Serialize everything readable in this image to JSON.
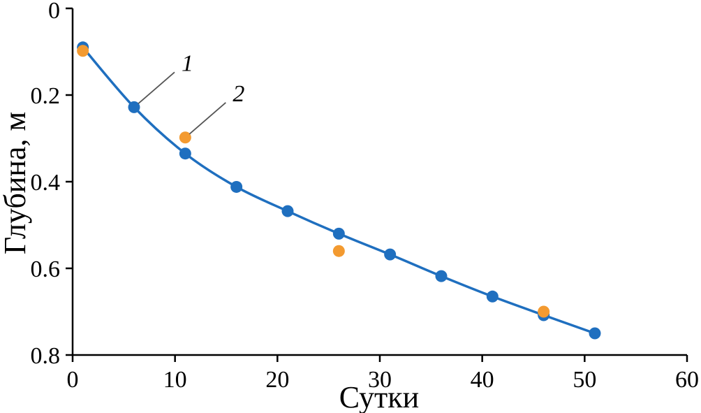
{
  "chart_data": {
    "type": "scatter",
    "xlabel": "Сутки",
    "ylabel": "Глубина, м",
    "xlim": [
      0,
      60
    ],
    "ylim": [
      0,
      0.8
    ],
    "y_inverted": true,
    "xticks": [
      0,
      10,
      20,
      30,
      40,
      50,
      60
    ],
    "xtick_labels": [
      "0",
      "10",
      "20",
      "30",
      "40",
      "50",
      "60"
    ],
    "yticks": [
      0,
      0.2,
      0.4,
      0.6,
      0.8
    ],
    "ytick_labels": [
      "0",
      "0.2",
      "0.4",
      "0.6",
      "0.8"
    ],
    "grid": false,
    "series": [
      {
        "name": "1",
        "color": "#1f6fbf",
        "marker": "circle",
        "connected": true,
        "x": [
          1,
          6,
          11,
          16,
          21,
          26,
          31,
          36,
          41,
          46,
          51
        ],
        "y": [
          0.09,
          0.228,
          0.335,
          0.412,
          0.468,
          0.52,
          0.568,
          0.618,
          0.665,
          0.708,
          0.75
        ]
      },
      {
        "name": "2",
        "color": "#f39a30",
        "marker": "circle",
        "connected": false,
        "x": [
          1,
          11,
          26,
          46
        ],
        "y": [
          0.098,
          0.298,
          0.56,
          0.7
        ]
      }
    ],
    "annotations": [
      {
        "text": "1",
        "series": 0,
        "point_index": 1
      },
      {
        "text": "2",
        "series": 1,
        "point_index": 1
      }
    ]
  }
}
